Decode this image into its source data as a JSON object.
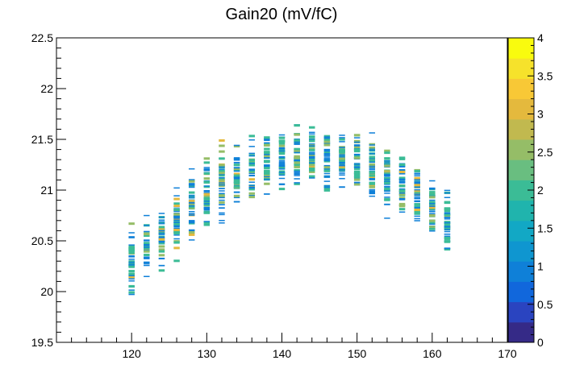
{
  "chart_data": {
    "type": "heatmap",
    "title": "Gain20 (mV/fC)",
    "xlabel": "",
    "ylabel": "",
    "xlim": [
      110,
      170
    ],
    "ylim": [
      19.5,
      22.5
    ],
    "x_ticks": [
      "120",
      "130",
      "140",
      "150",
      "160",
      "170"
    ],
    "y_ticks": [
      "19.5",
      "20",
      "20.5",
      "21",
      "21.5",
      "22",
      "22.5"
    ],
    "colorbar": {
      "range": [
        0,
        4
      ],
      "ticks": [
        "0",
        "0.5",
        "1",
        "1.5",
        "2",
        "2.5",
        "3",
        "3.5",
        "4"
      ],
      "palette": [
        "#352a87",
        "#2a44c0",
        "#1167dc",
        "#0f80d8",
        "#0f96d0",
        "#12a8c5",
        "#20b4ad",
        "#3bbc96",
        "#69be80",
        "#95bd67",
        "#c1b94f",
        "#e4b93d",
        "#f8c836",
        "#f6e22b",
        "#f9fb0e"
      ]
    },
    "bin_width": 0.8,
    "bin_height": 0.012,
    "columns": [
      {
        "x": 120,
        "center": 20.28,
        "spread": 0.34
      },
      {
        "x": 122,
        "center": 20.42,
        "spread": 0.29
      },
      {
        "x": 124,
        "center": 20.55,
        "spread": 0.31
      },
      {
        "x": 126,
        "center": 20.68,
        "spread": 0.31
      },
      {
        "x": 128,
        "center": 20.82,
        "spread": 0.32
      },
      {
        "x": 130,
        "center": 20.93,
        "spread": 0.35
      },
      {
        "x": 132,
        "center": 21.03,
        "spread": 0.38
      },
      {
        "x": 134,
        "center": 21.13,
        "spread": 0.34
      },
      {
        "x": 136,
        "center": 21.19,
        "spread": 0.32
      },
      {
        "x": 138,
        "center": 21.24,
        "spread": 0.3
      },
      {
        "x": 140,
        "center": 21.29,
        "spread": 0.29
      },
      {
        "x": 142,
        "center": 21.31,
        "spread": 0.29
      },
      {
        "x": 144,
        "center": 21.34,
        "spread": 0.28
      },
      {
        "x": 146,
        "center": 21.32,
        "spread": 0.29
      },
      {
        "x": 148,
        "center": 21.31,
        "spread": 0.26
      },
      {
        "x": 150,
        "center": 21.26,
        "spread": 0.28
      },
      {
        "x": 152,
        "center": 21.2,
        "spread": 0.3
      },
      {
        "x": 154,
        "center": 21.11,
        "spread": 0.31
      },
      {
        "x": 156,
        "center": 21.02,
        "spread": 0.3
      },
      {
        "x": 158,
        "center": 20.92,
        "spread": 0.32
      },
      {
        "x": 160,
        "center": 20.82,
        "spread": 0.28
      },
      {
        "x": 162,
        "center": 20.66,
        "spread": 0.3
      }
    ],
    "grid": false,
    "legend": "none"
  }
}
